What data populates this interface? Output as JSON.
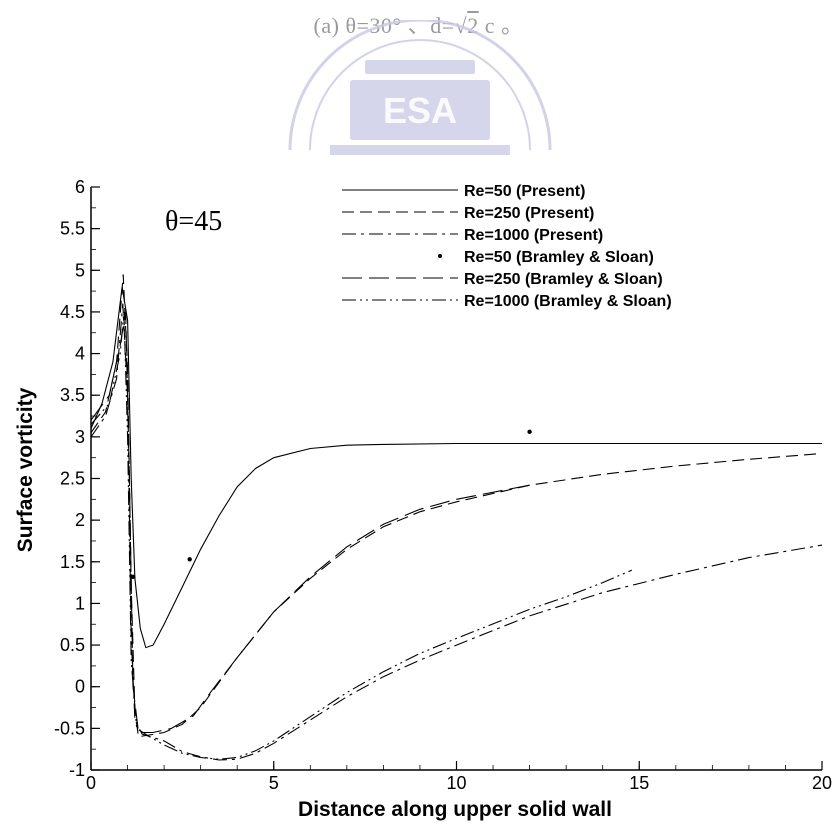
{
  "caption": {
    "prefix": "(a) θ=30° 、d=",
    "sqrt_radicand": "2",
    "suffix": " c 。"
  },
  "watermark": {
    "text": "ESA"
  },
  "chart_data": {
    "type": "line",
    "title": "",
    "annotation": "θ=45",
    "xlabel": "Distance along upper solid wall",
    "ylabel": "Surface vorticity",
    "xlim": [
      0,
      20
    ],
    "ylim": [
      -1,
      6
    ],
    "xticks": [
      0,
      5,
      10,
      15,
      20
    ],
    "yticks": [
      -1,
      -0.5,
      0,
      0.5,
      1,
      1.5,
      2,
      2.5,
      3,
      3.5,
      4,
      4.5,
      5,
      5.5,
      6
    ],
    "grid": false,
    "legend_position": "top-right",
    "series": [
      {
        "name": "Re=50 (Present)",
        "style": "solid",
        "points": [
          [
            0,
            3.1
          ],
          [
            0.3,
            3.4
          ],
          [
            0.6,
            3.9
          ],
          [
            0.85,
            4.8
          ],
          [
            1.0,
            4.4
          ],
          [
            1.1,
            2.5
          ],
          [
            1.2,
            1.3
          ],
          [
            1.35,
            0.7
          ],
          [
            1.5,
            0.47
          ],
          [
            1.7,
            0.5
          ],
          [
            2.0,
            0.75
          ],
          [
            2.5,
            1.2
          ],
          [
            3.0,
            1.65
          ],
          [
            3.5,
            2.05
          ],
          [
            4.0,
            2.4
          ],
          [
            4.5,
            2.62
          ],
          [
            5.0,
            2.75
          ],
          [
            6.0,
            2.86
          ],
          [
            7.0,
            2.9
          ],
          [
            8.0,
            2.91
          ],
          [
            10.0,
            2.92
          ],
          [
            15.0,
            2.92
          ],
          [
            20.0,
            2.92
          ]
        ]
      },
      {
        "name": "Re=250 (Present)",
        "style": "dash",
        "points": [
          [
            0,
            3.05
          ],
          [
            0.4,
            3.3
          ],
          [
            0.7,
            3.9
          ],
          [
            0.88,
            4.95
          ],
          [
            1.0,
            3.8
          ],
          [
            1.1,
            1.2
          ],
          [
            1.2,
            -0.3
          ],
          [
            1.3,
            -0.6
          ],
          [
            1.6,
            -0.58
          ],
          [
            2.0,
            -0.55
          ],
          [
            2.5,
            -0.45
          ],
          [
            3.0,
            -0.25
          ],
          [
            3.5,
            0.05
          ],
          [
            4.0,
            0.35
          ],
          [
            5.0,
            0.9
          ],
          [
            6.0,
            1.3
          ],
          [
            7.0,
            1.65
          ],
          [
            8.0,
            1.92
          ],
          [
            9.0,
            2.1
          ],
          [
            10.0,
            2.22
          ],
          [
            12.0,
            2.42
          ],
          [
            14.0,
            2.55
          ],
          [
            16.0,
            2.65
          ],
          [
            18.0,
            2.73
          ],
          [
            20.0,
            2.8
          ]
        ]
      },
      {
        "name": "Re=1000 (Present)",
        "style": "dashdot",
        "points": [
          [
            0,
            3.0
          ],
          [
            0.4,
            3.25
          ],
          [
            0.7,
            3.7
          ],
          [
            0.87,
            4.6
          ],
          [
            1.0,
            3.5
          ],
          [
            1.1,
            0.6
          ],
          [
            1.2,
            -0.4
          ],
          [
            1.4,
            -0.57
          ],
          [
            2.0,
            -0.65
          ],
          [
            2.5,
            -0.78
          ],
          [
            3.0,
            -0.84
          ],
          [
            3.5,
            -0.88
          ],
          [
            4.0,
            -0.87
          ],
          [
            4.5,
            -0.8
          ],
          [
            5.0,
            -0.68
          ],
          [
            6.0,
            -0.4
          ],
          [
            7.0,
            -0.12
          ],
          [
            8.0,
            0.12
          ],
          [
            9.0,
            0.32
          ],
          [
            10.0,
            0.5
          ],
          [
            12.0,
            0.85
          ],
          [
            14.0,
            1.13
          ],
          [
            16.0,
            1.35
          ],
          [
            18.0,
            1.55
          ],
          [
            20.0,
            1.7
          ]
        ]
      },
      {
        "name": "Re=50 (Bramley & Sloan)",
        "style": "dots",
        "points": [
          [
            1.15,
            1.32
          ],
          [
            2.7,
            1.53
          ],
          [
            12.0,
            3.06
          ]
        ]
      },
      {
        "name": "Re=250 (Bramley & Sloan)",
        "style": "longdash",
        "points": [
          [
            0,
            3.2
          ],
          [
            0.5,
            3.5
          ],
          [
            0.8,
            4.1
          ],
          [
            0.95,
            4.5
          ],
          [
            1.05,
            2.5
          ],
          [
            1.15,
            0.0
          ],
          [
            1.3,
            -0.55
          ],
          [
            1.7,
            -0.55
          ],
          [
            2.2,
            -0.5
          ],
          [
            2.8,
            -0.35
          ],
          [
            3.3,
            -0.05
          ],
          [
            4.0,
            0.35
          ],
          [
            5.0,
            0.9
          ],
          [
            6.0,
            1.32
          ],
          [
            7.0,
            1.68
          ],
          [
            8.0,
            1.95
          ],
          [
            9.0,
            2.13
          ],
          [
            10.0,
            2.25
          ],
          [
            12.0,
            2.42
          ]
        ]
      },
      {
        "name": "Re=1000 (Bramley & Sloan)",
        "style": "dashdotdot",
        "points": [
          [
            0,
            3.15
          ],
          [
            0.5,
            3.4
          ],
          [
            0.8,
            4.0
          ],
          [
            0.9,
            4.5
          ],
          [
            1.0,
            3.0
          ],
          [
            1.1,
            0.3
          ],
          [
            1.25,
            -0.5
          ],
          [
            1.6,
            -0.6
          ],
          [
            2.0,
            -0.7
          ],
          [
            2.5,
            -0.8
          ],
          [
            3.0,
            -0.85
          ],
          [
            3.5,
            -0.87
          ],
          [
            4.0,
            -0.85
          ],
          [
            4.5,
            -0.77
          ],
          [
            5.0,
            -0.65
          ],
          [
            6.0,
            -0.36
          ],
          [
            7.0,
            -0.07
          ],
          [
            8.0,
            0.18
          ],
          [
            9.0,
            0.4
          ],
          [
            10.0,
            0.58
          ],
          [
            12.0,
            0.93
          ],
          [
            13.0,
            1.08
          ],
          [
            14.0,
            1.25
          ],
          [
            14.8,
            1.4
          ]
        ]
      }
    ]
  }
}
